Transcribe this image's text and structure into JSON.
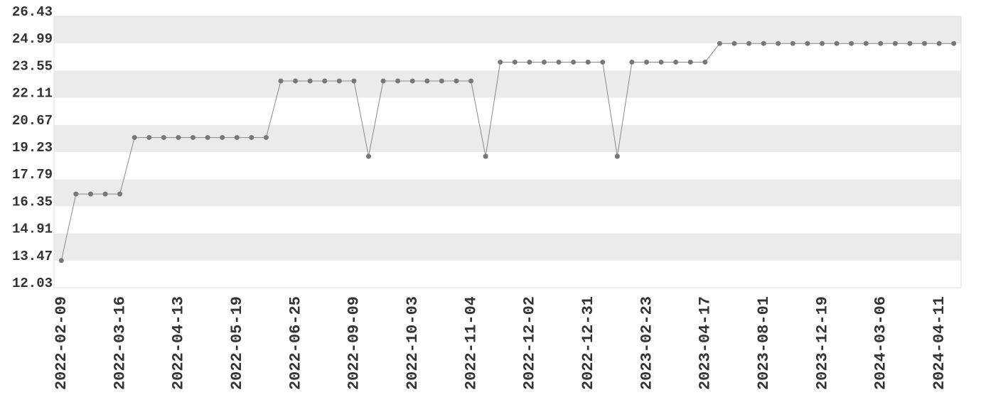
{
  "chart_data": {
    "type": "line",
    "categories": [
      "2022-02-09",
      null,
      null,
      null,
      "2022-03-16",
      null,
      null,
      null,
      "2022-04-13",
      null,
      null,
      null,
      "2022-05-19",
      null,
      null,
      null,
      "2022-06-25",
      null,
      null,
      null,
      "2022-09-09",
      null,
      null,
      null,
      "2022-10-03",
      null,
      null,
      null,
      "2022-11-04",
      null,
      null,
      null,
      "2022-12-02",
      null,
      null,
      null,
      "2022-12-31",
      null,
      null,
      null,
      "2023-02-23",
      null,
      null,
      null,
      "2023-04-17",
      null,
      null,
      null,
      "2023-08-01",
      null,
      null,
      null,
      "2023-12-19",
      null,
      null,
      null,
      "2024-03-06",
      null,
      null,
      null,
      "2024-04-11",
      null
    ],
    "values": [
      13.47,
      17,
      17,
      17,
      17,
      20,
      20,
      20,
      20,
      20,
      20,
      20,
      20,
      20,
      20,
      23,
      23,
      23,
      23,
      23,
      23,
      19,
      23,
      23,
      23,
      23,
      23,
      23,
      23,
      19,
      24,
      24,
      24,
      24,
      24,
      24,
      24,
      24,
      19,
      24,
      24,
      24,
      24,
      24,
      24,
      24.99,
      24.99,
      24.99,
      24.99,
      24.99,
      24.99,
      24.99,
      24.99,
      24.99,
      24.99,
      24.99,
      24.99,
      24.99,
      24.99,
      24.99,
      24.99,
      24.99
    ],
    "color": "#777777",
    "ylim": [
      12.03,
      26.43
    ],
    "yticks": [
      12.03,
      13.47,
      14.91,
      16.35,
      17.79,
      19.23,
      20.67,
      22.11,
      23.55,
      24.99,
      26.43
    ],
    "grid": true
  }
}
